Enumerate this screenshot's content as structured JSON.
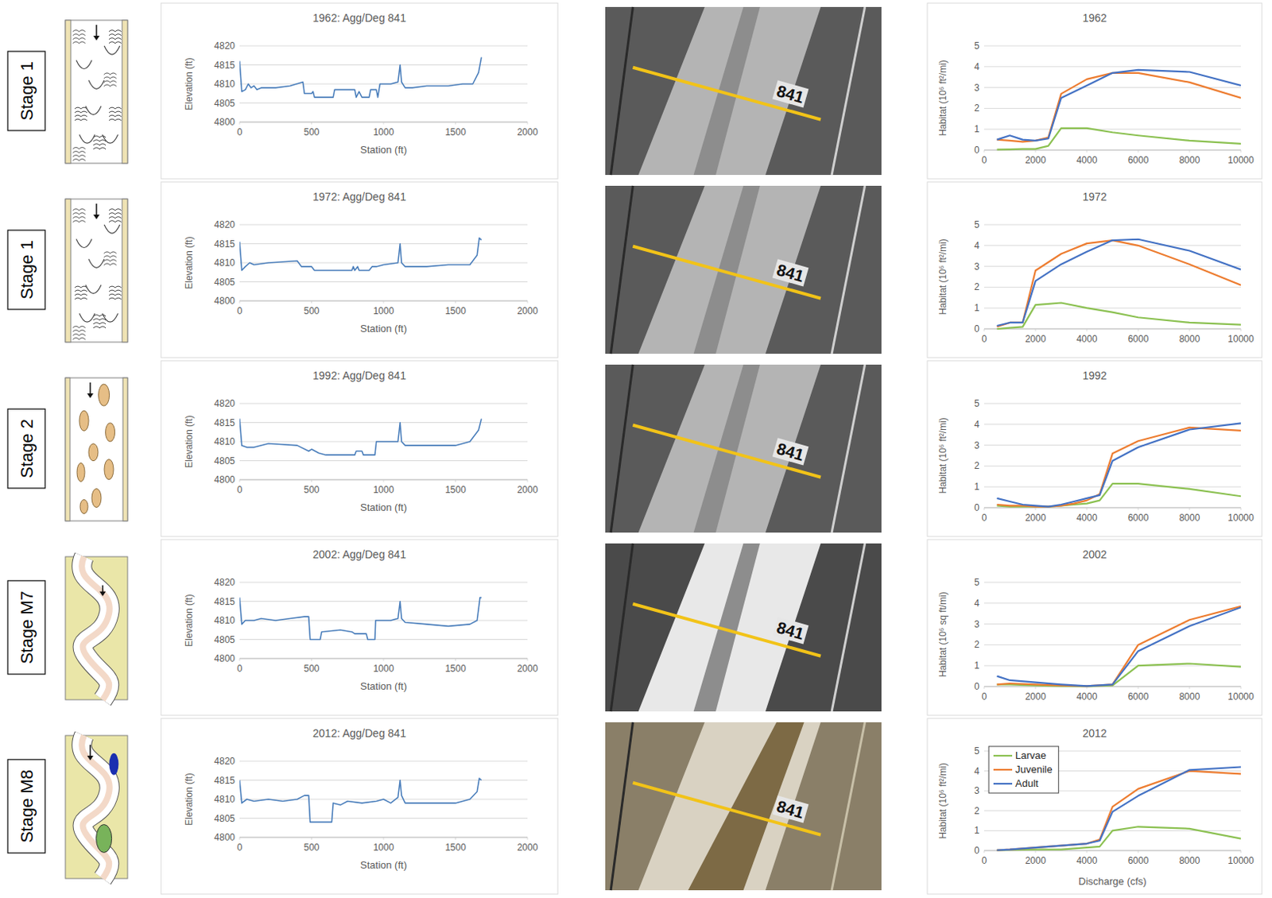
{
  "stages": [
    "Stage 1",
    "Stage 1",
    "Stage 2",
    "Stage M7",
    "Stage M8"
  ],
  "photo_labels": [
    "841",
    "841",
    "841",
    "841",
    "841"
  ],
  "chart_data": [
    {
      "type": "line",
      "title": "1962: Agg/Deg 841",
      "x_label": "Station (ft)",
      "y_label": "Elevation (ft)",
      "color": "#4a7ebb",
      "grid": true,
      "xlim": [
        0,
        2000
      ],
      "xticks": [
        0,
        500,
        1000,
        1500,
        2000
      ],
      "ylim": [
        4800,
        4820
      ],
      "yticks": [
        4800,
        4805,
        4810,
        4815,
        4820
      ],
      "x": [
        0,
        15,
        40,
        60,
        80,
        100,
        120,
        150,
        250,
        350,
        440,
        450,
        500,
        510,
        520,
        650,
        660,
        800,
        810,
        830,
        850,
        900,
        910,
        950,
        960,
        975,
        1050,
        1100,
        1115,
        1125,
        1150,
        1200,
        1300,
        1450,
        1550,
        1620,
        1660,
        1680
      ],
      "values": [
        4816,
        4808,
        4808.5,
        4810,
        4809,
        4809.5,
        4808.5,
        4809,
        4809,
        4809.5,
        4810.5,
        4807.5,
        4807.5,
        4808,
        4806.5,
        4806.5,
        4808.5,
        4808.5,
        4806.5,
        4808,
        4806.5,
        4806.5,
        4808.5,
        4808.5,
        4806.5,
        4810,
        4810,
        4810.5,
        4815,
        4810.5,
        4809,
        4809,
        4809.5,
        4809.5,
        4810,
        4810,
        4813,
        4817
      ]
    },
    {
      "type": "line",
      "title": "1962",
      "y_label": "Habitat (10⁶ ft²/mi)",
      "grid": true,
      "xlim": [
        0,
        10000
      ],
      "xticks": [
        0,
        2000,
        4000,
        6000,
        8000,
        10000
      ],
      "ylim": [
        0,
        5
      ],
      "yticks": [
        0,
        1,
        2,
        3,
        4,
        5
      ],
      "x": [
        500,
        1000,
        1500,
        2000,
        2500,
        3000,
        4000,
        5000,
        6000,
        8000,
        10000
      ],
      "series": [
        {
          "name": "Larvae",
          "color": "#8cc152",
          "values": [
            0.02,
            0.03,
            0.05,
            0.05,
            0.2,
            1.05,
            1.05,
            0.85,
            0.7,
            0.45,
            0.3
          ]
        },
        {
          "name": "Juvenile",
          "color": "#ed7d31",
          "values": [
            0.5,
            0.45,
            0.4,
            0.45,
            0.6,
            2.7,
            3.4,
            3.7,
            3.7,
            3.25,
            2.5
          ]
        },
        {
          "name": "Adult",
          "color": "#4472c4",
          "values": [
            0.5,
            0.7,
            0.5,
            0.45,
            0.55,
            2.5,
            3.1,
            3.7,
            3.85,
            3.75,
            3.1
          ]
        }
      ]
    },
    {
      "type": "line",
      "title": "1972: Agg/Deg 841",
      "x_label": "Station (ft)",
      "y_label": "Elevation (ft)",
      "color": "#4a7ebb",
      "grid": true,
      "xlim": [
        0,
        2000
      ],
      "xticks": [
        0,
        500,
        1000,
        1500,
        2000
      ],
      "ylim": [
        4800,
        4820
      ],
      "yticks": [
        4800,
        4805,
        4810,
        4815,
        4820
      ],
      "x": [
        0,
        15,
        40,
        70,
        100,
        200,
        400,
        430,
        500,
        520,
        780,
        790,
        800,
        820,
        830,
        900,
        920,
        950,
        1000,
        1100,
        1115,
        1125,
        1150,
        1300,
        1450,
        1600,
        1650,
        1665,
        1680
      ],
      "values": [
        4815.5,
        4808,
        4809,
        4810,
        4809.5,
        4810,
        4810.5,
        4809,
        4809,
        4808,
        4808,
        4809,
        4808,
        4809,
        4808,
        4808,
        4809,
        4809,
        4809.5,
        4810,
        4815,
        4810,
        4809,
        4809,
        4809.5,
        4809.5,
        4812,
        4816.5,
        4816
      ]
    },
    {
      "type": "line",
      "title": "1972",
      "y_label": "Habitat (10⁶ ft²/mi)",
      "grid": true,
      "xlim": [
        0,
        10000
      ],
      "xticks": [
        0,
        2000,
        4000,
        6000,
        8000,
        10000
      ],
      "ylim": [
        0,
        5
      ],
      "yticks": [
        0,
        1,
        2,
        3,
        4,
        5
      ],
      "x": [
        500,
        1000,
        1500,
        2000,
        2500,
        3000,
        4000,
        5000,
        6000,
        8000,
        10000
      ],
      "series": [
        {
          "name": "Larvae",
          "color": "#8cc152",
          "values": [
            0,
            0.05,
            0.1,
            1.15,
            1.2,
            1.25,
            1.0,
            0.8,
            0.55,
            0.3,
            0.2
          ]
        },
        {
          "name": "Juvenile",
          "color": "#ed7d31",
          "values": [
            0.1,
            0.3,
            0.3,
            2.8,
            3.2,
            3.6,
            4.1,
            4.25,
            4.0,
            3.1,
            2.1
          ]
        },
        {
          "name": "Adult",
          "color": "#4472c4",
          "values": [
            0.15,
            0.3,
            0.3,
            2.3,
            2.7,
            3.1,
            3.7,
            4.25,
            4.3,
            3.75,
            2.85
          ]
        }
      ]
    },
    {
      "type": "line",
      "title": "1992: Agg/Deg 841",
      "x_label": "Station (ft)",
      "y_label": "Elevation (ft)",
      "color": "#4a7ebb",
      "grid": true,
      "xlim": [
        0,
        2000
      ],
      "xticks": [
        0,
        500,
        1000,
        1500,
        2000
      ],
      "ylim": [
        4800,
        4820
      ],
      "yticks": [
        4800,
        4805,
        4810,
        4815,
        4820
      ],
      "x": [
        0,
        15,
        50,
        100,
        200,
        400,
        480,
        500,
        550,
        600,
        800,
        810,
        850,
        860,
        940,
        950,
        1100,
        1115,
        1125,
        1150,
        1300,
        1500,
        1600,
        1660,
        1680
      ],
      "values": [
        4816,
        4809,
        4808.5,
        4808.5,
        4809.5,
        4809,
        4807.5,
        4808,
        4807,
        4806.5,
        4806.5,
        4807.5,
        4807.5,
        4806.5,
        4806.5,
        4810,
        4810,
        4815,
        4810,
        4809,
        4809,
        4809,
        4810,
        4813,
        4816
      ]
    },
    {
      "type": "line",
      "title": "1992",
      "y_label": "Habitat (10⁶ ft²/mi)",
      "grid": true,
      "xlim": [
        0,
        10000
      ],
      "xticks": [
        0,
        2000,
        4000,
        6000,
        8000,
        10000
      ],
      "ylim": [
        0,
        5
      ],
      "yticks": [
        0,
        1,
        2,
        3,
        4,
        5
      ],
      "x": [
        500,
        1000,
        1500,
        2000,
        2500,
        3000,
        3500,
        4000,
        4500,
        5000,
        6000,
        8000,
        10000
      ],
      "series": [
        {
          "name": "Larvae",
          "color": "#8cc152",
          "values": [
            0.1,
            0.05,
            0.05,
            0.05,
            0.05,
            0.1,
            0.15,
            0.2,
            0.35,
            1.15,
            1.15,
            0.9,
            0.55
          ]
        },
        {
          "name": "Juvenile",
          "color": "#ed7d31",
          "values": [
            0.15,
            0.1,
            0.1,
            0.05,
            0.05,
            0.1,
            0.2,
            0.35,
            0.65,
            2.6,
            3.2,
            3.85,
            3.7
          ]
        },
        {
          "name": "Adult",
          "color": "#4472c4",
          "values": [
            0.45,
            0.3,
            0.15,
            0.1,
            0.05,
            0.15,
            0.3,
            0.45,
            0.6,
            2.25,
            2.9,
            3.75,
            4.05
          ]
        }
      ]
    },
    {
      "type": "line",
      "title": "2002: Agg/Deg 841",
      "x_label": "Station (ft)",
      "y_label": "Elevation (ft)",
      "color": "#4a7ebb",
      "grid": true,
      "xlim": [
        0,
        2000
      ],
      "xticks": [
        0,
        500,
        1000,
        1500,
        2000
      ],
      "ylim": [
        4800,
        4820
      ],
      "yticks": [
        4800,
        4805,
        4810,
        4815,
        4820
      ],
      "x": [
        0,
        15,
        40,
        100,
        150,
        250,
        350,
        450,
        480,
        490,
        560,
        570,
        700,
        780,
        800,
        880,
        890,
        940,
        945,
        1050,
        1100,
        1115,
        1125,
        1150,
        1300,
        1450,
        1600,
        1650,
        1670,
        1680
      ],
      "values": [
        4816,
        4809,
        4810,
        4810,
        4810.5,
        4810,
        4810.5,
        4811,
        4811,
        4805,
        4805,
        4807,
        4807.5,
        4807,
        4806.5,
        4806.5,
        4805,
        4805,
        4810,
        4810,
        4810.5,
        4815,
        4810.5,
        4809.5,
        4809,
        4808.5,
        4809,
        4810,
        4816,
        4816
      ]
    },
    {
      "type": "line",
      "title": "2002",
      "y_label": "Habitat (10⁶ sq ft/mi)",
      "grid": true,
      "xlim": [
        0,
        10000
      ],
      "xticks": [
        0,
        2000,
        4000,
        6000,
        8000,
        10000
      ],
      "ylim": [
        0,
        5
      ],
      "yticks": [
        0,
        1,
        2,
        3,
        4,
        5
      ],
      "x": [
        500,
        1000,
        2000,
        3000,
        4000,
        5000,
        6000,
        8000,
        10000
      ],
      "series": [
        {
          "name": "Larvae",
          "color": "#8cc152",
          "values": [
            0.1,
            0.1,
            0.05,
            0.02,
            0.01,
            0.05,
            1.0,
            1.1,
            0.95
          ]
        },
        {
          "name": "Juvenile",
          "color": "#ed7d31",
          "values": [
            0.1,
            0.15,
            0.1,
            0.05,
            0.02,
            0.1,
            2.0,
            3.2,
            3.85
          ]
        },
        {
          "name": "Adult",
          "color": "#4472c4",
          "values": [
            0.5,
            0.3,
            0.2,
            0.1,
            0.02,
            0.1,
            1.7,
            2.9,
            3.8
          ]
        }
      ]
    },
    {
      "type": "line",
      "title": "2012: Agg/Deg 841",
      "x_label": "Station (ft)",
      "y_label": "Elevation (ft)",
      "color": "#4a7ebb",
      "grid": true,
      "xlim": [
        0,
        2000
      ],
      "xticks": [
        0,
        500,
        1000,
        1500,
        2000
      ],
      "ylim": [
        4800,
        4820
      ],
      "yticks": [
        4800,
        4805,
        4810,
        4815,
        4820
      ],
      "x": [
        0,
        15,
        50,
        100,
        200,
        300,
        400,
        450,
        480,
        490,
        640,
        650,
        700,
        750,
        850,
        950,
        1000,
        1050,
        1100,
        1115,
        1125,
        1150,
        1300,
        1500,
        1600,
        1650,
        1665,
        1680
      ],
      "values": [
        4815,
        4809,
        4810,
        4809.5,
        4810,
        4809.5,
        4810,
        4811,
        4811,
        4804,
        4804,
        4809,
        4808.5,
        4809.5,
        4809,
        4809.5,
        4810,
        4809,
        4810.5,
        4815,
        4811,
        4809,
        4809,
        4809,
        4810,
        4812,
        4815.5,
        4815
      ]
    },
    {
      "type": "line",
      "title": "2012",
      "x_label": "Discharge (cfs)",
      "y_label": "Habitat (10⁶ ft²/mi)",
      "grid": true,
      "legend": "upper left",
      "xlim": [
        0,
        10000
      ],
      "xticks": [
        0,
        2000,
        4000,
        6000,
        8000,
        10000
      ],
      "ylim": [
        0,
        5
      ],
      "yticks": [
        0,
        1,
        2,
        3,
        4,
        5
      ],
      "x": [
        500,
        1000,
        2000,
        3000,
        3500,
        4000,
        4500,
        5000,
        6000,
        8000,
        10000
      ],
      "series": [
        {
          "name": "Larvae",
          "color": "#8cc152",
          "values": [
            0.02,
            0.03,
            0.05,
            0.05,
            0.1,
            0.15,
            0.2,
            1.0,
            1.2,
            1.1,
            0.6
          ]
        },
        {
          "name": "Juvenile",
          "color": "#ed7d31",
          "values": [
            0.02,
            0.05,
            0.15,
            0.25,
            0.3,
            0.35,
            0.55,
            2.2,
            3.1,
            4.0,
            3.85
          ]
        },
        {
          "name": "Adult",
          "color": "#4472c4",
          "values": [
            0.02,
            0.05,
            0.15,
            0.25,
            0.3,
            0.35,
            0.5,
            1.95,
            2.75,
            4.05,
            4.2
          ]
        }
      ]
    }
  ]
}
